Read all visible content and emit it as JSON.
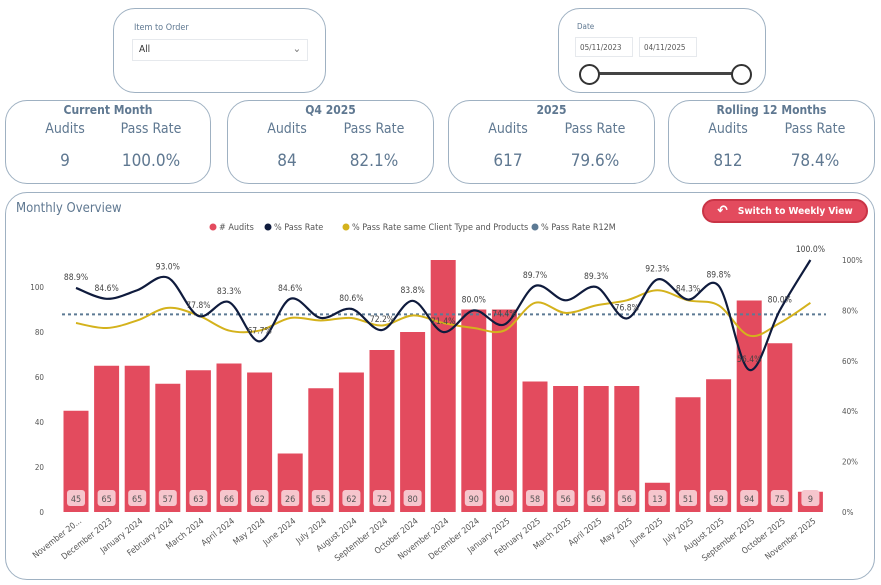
{
  "filters": {
    "item_to_order": {
      "label": "Item to Order",
      "value": "All"
    },
    "date": {
      "label": "Date",
      "start": "05/11/2023",
      "end": "04/11/2025"
    }
  },
  "kpis": [
    {
      "title": "Current Month",
      "audits_label": "Audits",
      "pass_label": "Pass Rate",
      "audits": "9",
      "pass_rate": "100.0%"
    },
    {
      "title": "Q4 2025",
      "audits_label": "Audits",
      "pass_label": "Pass Rate",
      "audits": "84",
      "pass_rate": "82.1%"
    },
    {
      "title": "2025",
      "audits_label": "Audits",
      "pass_label": "Pass Rate",
      "audits": "617",
      "pass_rate": "79.6%"
    },
    {
      "title": "Rolling 12 Months",
      "audits_label": "Audits",
      "pass_label": "Pass Rate",
      "audits": "812",
      "pass_rate": "78.4%"
    }
  ],
  "overview": {
    "title": "Monthly Overview",
    "switch_label": "Switch to Weekly View"
  },
  "colors": {
    "audits": "#e34b5e",
    "pass_rate": "#0f1b3d",
    "same_client": "#d4b21c",
    "r12m": "#5c7a94"
  },
  "chart_data": {
    "type": "bar+line",
    "legend": [
      "# Audits",
      "% Pass Rate",
      "% Pass Rate same Client Type and Products",
      "% Pass Rate R12M"
    ],
    "legend_position": "top",
    "categories": [
      "November 20...",
      "December 2023",
      "January 2024",
      "February 2024",
      "March 2024",
      "April 2024",
      "May 2024",
      "June 2024",
      "July 2024",
      "August 2024",
      "September 2024",
      "October 2024",
      "November 2024",
      "December 2024",
      "January 2025",
      "February 2025",
      "March 2025",
      "April 2025",
      "May 2025",
      "June 2025",
      "July 2025",
      "August 2025",
      "September 2025",
      "October 2025",
      "November 2025"
    ],
    "audits": [
      45,
      65,
      65,
      57,
      63,
      66,
      62,
      26,
      55,
      62,
      72,
      80,
      112,
      90,
      90,
      58,
      56,
      56,
      56,
      13,
      51,
      59,
      94,
      75,
      9
    ],
    "audit_labels_shown": [
      true,
      true,
      true,
      true,
      true,
      true,
      true,
      true,
      true,
      true,
      true,
      true,
      false,
      true,
      true,
      true,
      true,
      true,
      true,
      true,
      true,
      true,
      true,
      true,
      true
    ],
    "pass_rate": [
      88.9,
      84.6,
      88,
      93.0,
      77.8,
      83.3,
      67.7,
      84.6,
      77,
      80.6,
      72.2,
      83.8,
      71.4,
      80.0,
      74.4,
      89.7,
      84,
      89.3,
      76.8,
      92.3,
      84.3,
      89.8,
      56.4,
      80.0,
      100.0
    ],
    "pass_rate_labels_shown": [
      true,
      true,
      false,
      true,
      true,
      true,
      true,
      true,
      false,
      true,
      true,
      true,
      true,
      true,
      true,
      true,
      false,
      true,
      true,
      true,
      true,
      true,
      true,
      true,
      true
    ],
    "pass_rate_same_client": [
      75,
      73,
      76,
      81,
      78,
      72,
      72,
      77,
      76,
      77,
      74,
      78,
      75,
      73,
      72,
      83,
      79,
      82,
      84,
      88,
      84,
      82,
      70,
      75,
      83
    ],
    "pass_rate_r12m": 78.4,
    "y_left": {
      "ticks": [
        0,
        20,
        40,
        60,
        80,
        100
      ],
      "range": [
        0,
        112
      ]
    },
    "y_right": {
      "ticks": [
        "0%",
        "20%",
        "40%",
        "60%",
        "80%",
        "100%"
      ],
      "range": [
        0,
        100
      ]
    },
    "grid": false
  }
}
